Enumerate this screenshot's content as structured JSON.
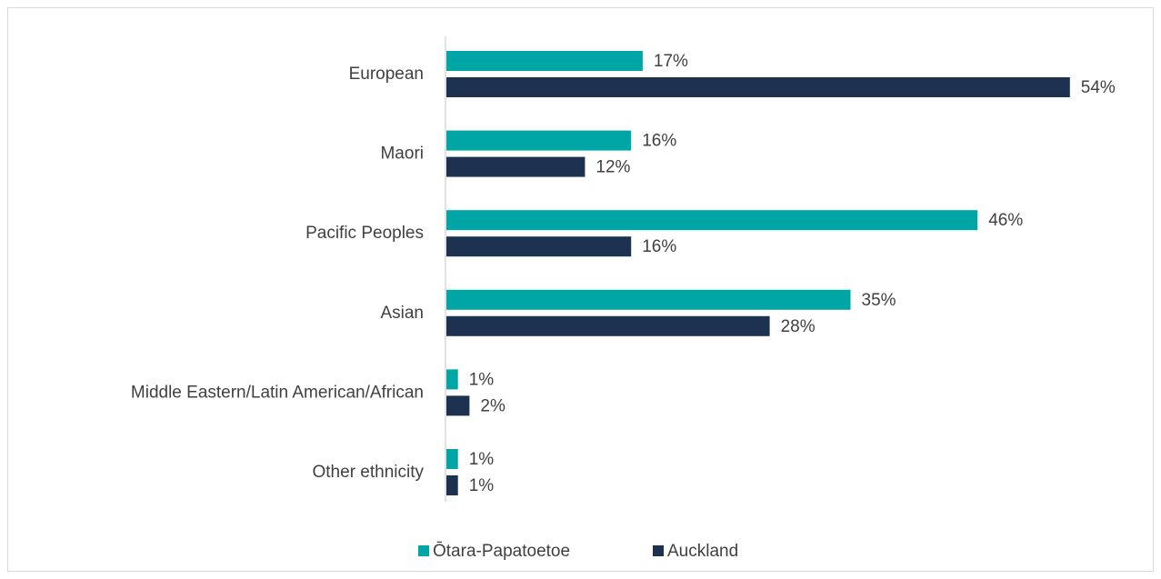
{
  "chart_data": {
    "type": "bar",
    "orientation": "horizontal",
    "categories": [
      "European",
      "Maori",
      "Pacific Peoples",
      "Asian",
      "Middle Eastern/Latin American/African",
      "Other ethnicity"
    ],
    "series": [
      {
        "name": "Ōtara-Papatoetoe",
        "color": "#00a6a6",
        "values": [
          17,
          16,
          46,
          35,
          1,
          1
        ],
        "value_labels": [
          "17%",
          "16%",
          "46%",
          "35%",
          "1%",
          "1%"
        ]
      },
      {
        "name": "Auckland",
        "color": "#1d3150",
        "values": [
          54,
          12,
          16,
          28,
          2,
          1
        ],
        "value_labels": [
          "54%",
          "12%",
          "16%",
          "28%",
          "2%",
          "1%"
        ]
      }
    ],
    "legend": "bottom"
  }
}
